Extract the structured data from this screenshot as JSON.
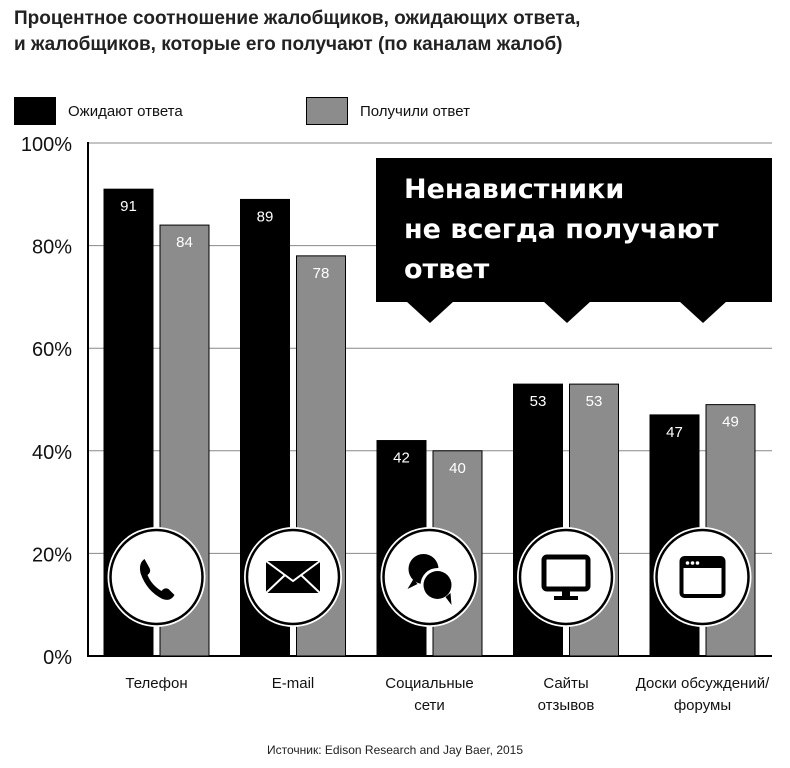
{
  "title_lines": [
    "Процентное соотношение жалобщиков, ожидающих ответа,",
    "и жалобщиков, которые его получают (по каналам жалоб)"
  ],
  "callout_lines": [
    "Ненавистники",
    "не всегда получают",
    "ответ"
  ],
  "source": "Источник: Edison Research and Jay Baer, 2015",
  "colors": {
    "waiting": "#000000",
    "received": "#8c8c8c",
    "grid": "#888888"
  },
  "chart_data": {
    "type": "bar",
    "title": "Процентное соотношение жалобщиков, ожидающих ответа, и жалобщиков, которые его получают (по каналам жалоб)",
    "categories": [
      [
        "Телефон"
      ],
      [
        "E-mail"
      ],
      [
        "Социальные",
        "сети"
      ],
      [
        "Сайты",
        "отзывов"
      ],
      [
        "Доски обсуждений/",
        "форумы"
      ]
    ],
    "category_icons": [
      "phone-icon",
      "envelope-icon",
      "chat-bubbles-icon",
      "monitor-icon",
      "browser-window-icon"
    ],
    "series": [
      {
        "name": "Ожидают ответа",
        "values": [
          91,
          89,
          42,
          53,
          47
        ]
      },
      {
        "name": "Получили ответ",
        "values": [
          84,
          78,
          40,
          53,
          49
        ]
      }
    ],
    "ylim": [
      0,
      100
    ],
    "yticks": [
      "0%",
      "20%",
      "40%",
      "60%",
      "80%",
      "100%"
    ],
    "ytick_values": [
      0,
      20,
      40,
      60,
      80,
      100
    ],
    "grid": true,
    "legend": "top-left"
  }
}
